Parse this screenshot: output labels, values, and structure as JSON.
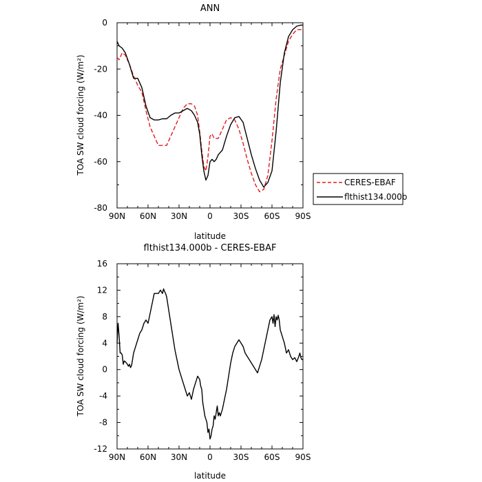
{
  "chart_data": [
    {
      "type": "line",
      "title": "ANN",
      "xlabel": "latitude",
      "ylabel": "TOA SW cloud forcing (W/m²)",
      "xlim": [
        90,
        -90
      ],
      "ylim": [
        -80,
        0
      ],
      "x_ticks": [
        {
          "value": 90,
          "label": "90N"
        },
        {
          "value": 60,
          "label": "60N"
        },
        {
          "value": 30,
          "label": "30N"
        },
        {
          "value": 0,
          "label": "0"
        },
        {
          "value": -30,
          "label": "30S"
        },
        {
          "value": -60,
          "label": "60S"
        },
        {
          "value": -90,
          "label": "90S"
        }
      ],
      "y_ticks": [
        {
          "value": 0,
          "label": "0"
        },
        {
          "value": -20,
          "label": "-20"
        },
        {
          "value": -40,
          "label": "-40"
        },
        {
          "value": -60,
          "label": "-60"
        },
        {
          "value": -80,
          "label": "-80"
        }
      ],
      "legend": "right",
      "series": [
        {
          "name": "CERES-EBAF",
          "color": "#e41a1c",
          "dash": "dashed",
          "x": [
            90,
            88,
            85,
            82,
            78,
            74,
            70,
            66,
            62,
            58,
            54,
            50,
            46,
            42,
            38,
            34,
            30,
            26,
            22,
            18,
            15,
            12,
            10,
            8,
            6,
            4,
            2,
            0,
            -2,
            -4,
            -6,
            -8,
            -12,
            -16,
            -20,
            -24,
            -28,
            -32,
            -36,
            -40,
            -44,
            -48,
            -52,
            -56,
            -60,
            -64,
            -68,
            -72,
            -76,
            -80,
            -84,
            -88,
            -90
          ],
          "y": [
            -15,
            -16,
            -13,
            -14,
            -18,
            -23,
            -27,
            -30,
            -38,
            -45,
            -49,
            -53,
            -53,
            -53,
            -49,
            -45,
            -41,
            -37,
            -35,
            -35,
            -36,
            -40,
            -47,
            -55,
            -62,
            -64,
            -58,
            -49,
            -48,
            -50,
            -50,
            -50,
            -46,
            -42,
            -41,
            -42,
            -46,
            -52,
            -59,
            -65,
            -70,
            -73,
            -72,
            -66,
            -51,
            -33,
            -20,
            -14,
            -8,
            -5,
            -3,
            -3,
            -2
          ]
        },
        {
          "name": "flthist134.000b",
          "color": "#000000",
          "dash": "solid",
          "x": [
            90,
            88,
            85,
            82,
            78,
            74,
            70,
            66,
            62,
            58,
            54,
            50,
            46,
            42,
            38,
            34,
            30,
            26,
            22,
            18,
            15,
            12,
            10,
            8,
            6,
            4,
            2,
            0,
            -2,
            -4,
            -6,
            -8,
            -12,
            -16,
            -20,
            -24,
            -28,
            -32,
            -36,
            -40,
            -44,
            -48,
            -52,
            -56,
            -60,
            -64,
            -68,
            -72,
            -76,
            -80,
            -84,
            -88,
            -90
          ],
          "y": [
            -8,
            -10,
            -11,
            -13,
            -18,
            -24,
            -24,
            -28,
            -36,
            -41,
            -42,
            -42,
            -41.5,
            -41.5,
            -40,
            -39,
            -39,
            -38,
            -37,
            -38,
            -40,
            -43,
            -48,
            -57,
            -64,
            -68,
            -66,
            -60,
            -59,
            -60,
            -59,
            -57,
            -55,
            -49,
            -44,
            -41,
            -40.5,
            -43,
            -50,
            -57,
            -63,
            -68,
            -71,
            -69,
            -64,
            -47,
            -26,
            -13,
            -6,
            -3,
            -1.5,
            -1,
            -1
          ]
        }
      ]
    },
    {
      "type": "line",
      "title": "flthist134.000b - CERES-EBAF",
      "xlabel": "latitude",
      "ylabel": "TOA SW cloud forcing (W/m²)",
      "xlim": [
        90,
        -90
      ],
      "ylim": [
        -12,
        16
      ],
      "x_ticks": [
        {
          "value": 90,
          "label": "90N"
        },
        {
          "value": 60,
          "label": "60N"
        },
        {
          "value": 30,
          "label": "30N"
        },
        {
          "value": 0,
          "label": "0"
        },
        {
          "value": -30,
          "label": "30S"
        },
        {
          "value": -60,
          "label": "60S"
        },
        {
          "value": -90,
          "label": "90S"
        }
      ],
      "y_ticks": [
        {
          "value": 16,
          "label": "16"
        },
        {
          "value": 12,
          "label": "12"
        },
        {
          "value": 8,
          "label": "8"
        },
        {
          "value": 4,
          "label": "4"
        },
        {
          "value": 0,
          "label": "0"
        },
        {
          "value": -4,
          "label": "-4"
        },
        {
          "value": -8,
          "label": "-8"
        },
        {
          "value": -12,
          "label": "-12"
        }
      ],
      "series": [
        {
          "color": "#000000",
          "x": [
            90,
            89,
            88,
            87,
            86,
            85,
            84,
            83,
            82,
            81,
            80,
            79,
            78,
            77,
            76,
            75,
            74,
            72,
            70,
            68,
            66,
            64,
            62,
            60,
            58,
            56,
            54,
            52,
            50,
            48,
            46,
            45,
            44,
            43,
            42,
            41,
            40,
            38,
            36,
            34,
            32,
            30,
            28,
            26,
            24,
            22,
            20,
            18,
            16,
            14,
            12,
            10,
            9,
            8,
            7,
            6,
            5,
            4,
            3,
            2,
            1,
            0,
            -1,
            -2,
            -3,
            -4,
            -5,
            -6,
            -7,
            -8,
            -9,
            -10,
            -11,
            -12,
            -14,
            -16,
            -18,
            -20,
            -22,
            -24,
            -26,
            -28,
            -30,
            -32,
            -34,
            -36,
            -38,
            -40,
            -42,
            -44,
            -46,
            -48,
            -50,
            -52,
            -54,
            -56,
            -58,
            -60,
            -61,
            -62,
            -63,
            -64,
            -65,
            -66,
            -67,
            -68,
            -70,
            -72,
            -74,
            -76,
            -78,
            -80,
            -82,
            -84,
            -86,
            -87,
            -88,
            -89,
            -90
          ],
          "y": [
            4,
            7,
            5,
            2.5,
            2.5,
            2.2,
            0.8,
            1.3,
            1.2,
            1.0,
            0.8,
            0.5,
            0.8,
            0.3,
            0.6,
            1.5,
            2.5,
            3.5,
            4.5,
            5.5,
            6,
            7,
            7.5,
            7,
            8.5,
            10,
            11.5,
            11.5,
            11.5,
            12,
            11.5,
            12.2,
            11.8,
            11.5,
            11,
            10,
            9,
            7,
            5,
            3,
            1.5,
            0,
            -1,
            -2,
            -3,
            -4,
            -3.5,
            -4.5,
            -3,
            -2,
            -1,
            -1.5,
            -2.5,
            -3,
            -5,
            -6,
            -7,
            -7.5,
            -8,
            -9.5,
            -9,
            -10.5,
            -10,
            -9,
            -8.5,
            -7,
            -7.5,
            -6.5,
            -5.5,
            -7,
            -6.5,
            -7,
            -6.5,
            -6,
            -4.5,
            -3,
            -1,
            1,
            2.5,
            3.5,
            4,
            4.5,
            4,
            3.5,
            2.5,
            2,
            1.5,
            1,
            0.5,
            0,
            -0.5,
            0.5,
            1.5,
            3,
            4.5,
            6,
            7.5,
            8,
            7,
            8.3,
            6.5,
            8,
            7.5,
            8.2,
            7.5,
            6,
            5,
            4,
            2.5,
            3,
            2,
            1.5,
            1.8,
            1.2,
            2,
            2.5,
            1.8,
            1.5,
            1.5
          ]
        }
      ]
    }
  ]
}
